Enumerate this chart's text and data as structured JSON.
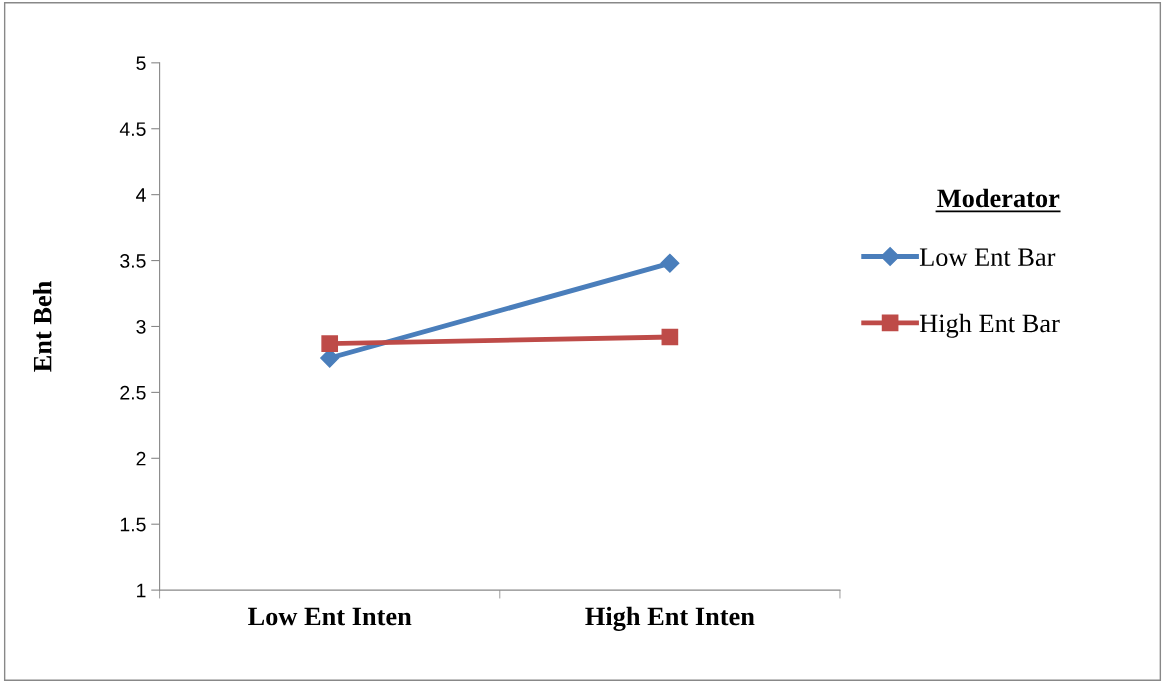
{
  "chart_data": {
    "type": "line",
    "ylabel": "Ent Beh",
    "legend_title": "Moderator",
    "categories": [
      "Low Ent Inten",
      "High Ent Inten"
    ],
    "series": [
      {
        "name": "Low Ent Bar",
        "color": "#4a7ebb",
        "marker": "diamond",
        "values": [
          2.76,
          3.48
        ]
      },
      {
        "name": "High Ent Bar",
        "color": "#be4b48",
        "marker": "square",
        "values": [
          2.87,
          2.92
        ]
      }
    ],
    "ylim": [
      1,
      5
    ],
    "yticks": [
      1,
      1.5,
      2,
      2.5,
      3,
      3.5,
      4,
      4.5,
      5
    ],
    "grid": false,
    "legend": "right",
    "line_style": "solid"
  }
}
